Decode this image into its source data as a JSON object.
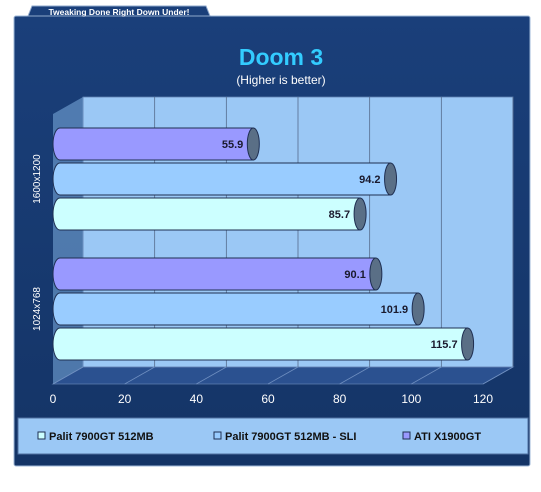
{
  "banner": "Tweaking Done Right Down Under!",
  "chart_data": {
    "type": "bar",
    "orientation": "horizontal",
    "title": "Doom 3",
    "subtitle": "(Higher is better)",
    "categories": [
      "1600x1200",
      "1024x768"
    ],
    "series": [
      {
        "name": "Palit 7900GT 512MB",
        "values": [
          85.7,
          115.7
        ],
        "color": "#ccffff"
      },
      {
        "name": "Palit 7900GT 512MB - SLI",
        "values": [
          94.2,
          101.9
        ],
        "color": "#99ccff"
      },
      {
        "name": "ATI X1900GT",
        "values": [
          55.9,
          90.1
        ],
        "color": "#9999ff"
      }
    ],
    "xlim": [
      0,
      120
    ],
    "xticks": [
      "0",
      "20",
      "40",
      "60",
      "80",
      "100",
      "120"
    ],
    "grid": true,
    "legend_position": "bottom",
    "colors": {
      "background": "#17386e",
      "plot_wall": "#9bc8f5",
      "floor": "#2b5190",
      "gridline": "#556b8c"
    }
  }
}
